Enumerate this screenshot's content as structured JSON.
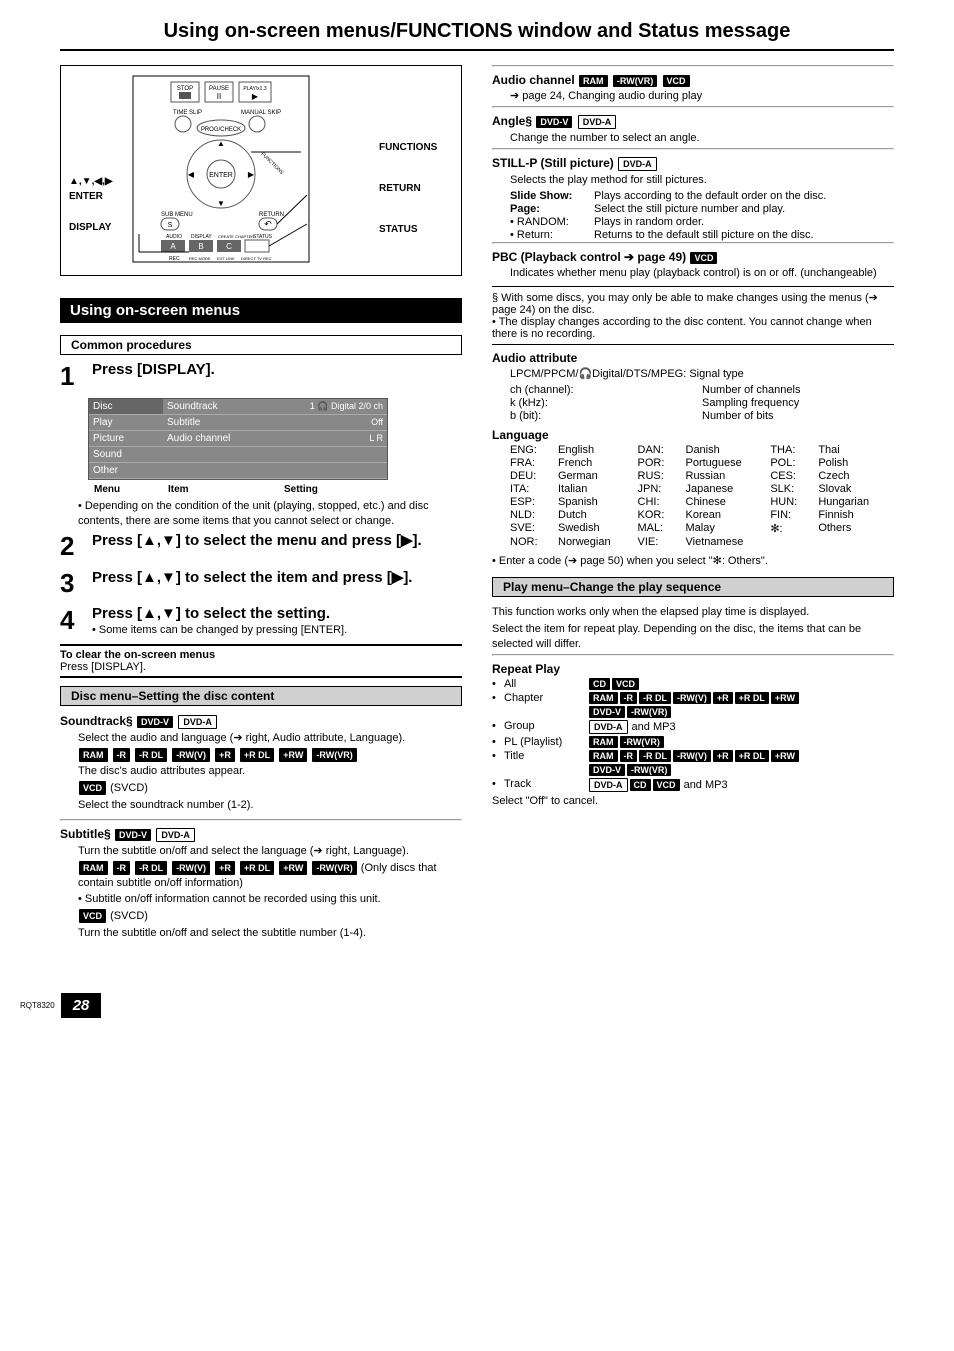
{
  "page_title": "Using on-screen menus/FUNCTIONS window and Status message",
  "doc_code": "RQT8320",
  "page_number": "28",
  "remote": {
    "left_labels": [
      "▲,▼,◀,▶ ENTER",
      "DISPLAY"
    ],
    "right_labels": [
      "FUNCTIONS",
      "RETURN",
      "STATUS"
    ]
  },
  "section_title": "Using on-screen menus",
  "common_procedures_label": "Common procedures",
  "steps": {
    "s1": {
      "num": "1",
      "title": "Press [DISPLAY].",
      "osd": {
        "rows": [
          {
            "l": "Disc",
            "m": "Soundtrack",
            "r": "1    🎧 Digital  2/0 ch"
          },
          {
            "l": "Play",
            "m": "Subtitle",
            "r": "Off"
          },
          {
            "l": "Picture",
            "m": "Audio channel",
            "r": "L R"
          },
          {
            "l": "Sound",
            "m": "",
            "r": ""
          },
          {
            "l": "Other",
            "m": "",
            "r": ""
          }
        ],
        "caption": [
          "Menu",
          "Item",
          "Setting"
        ]
      },
      "note": "• Depending on the condition of the unit (playing, stopped, etc.) and disc contents, there are some items that you cannot select or change."
    },
    "s2": {
      "num": "2",
      "title": "Press [▲,▼] to select the menu and press [▶]."
    },
    "s3": {
      "num": "3",
      "title": "Press [▲,▼] to select the item and press [▶]."
    },
    "s4": {
      "num": "4",
      "title": "Press [▲,▼] to select the setting.",
      "note": "• Some items can be changed by pressing [ENTER]."
    }
  },
  "clear": {
    "title": "To clear the on-screen menus",
    "body": "Press [DISPLAY]."
  },
  "disc_menu_bar": "Disc menu–Setting the disc content",
  "soundtrack": {
    "title": "Soundtrack",
    "line1": "Select the audio and language (➔ right, Audio attribute, Language).",
    "line2": "The disc's audio attributes appear.",
    "line3": "(SVCD)",
    "line4": "Select the soundtrack number (1-2)."
  },
  "subtitle": {
    "title": "Subtitle",
    "line1": "Turn the subtitle on/off and select the language (➔ right, Language).",
    "line2": "(Only discs that contain subtitle on/off information)",
    "line3": "• Subtitle on/off information cannot be recorded using this unit.",
    "line4": "(SVCD)",
    "line5": "Turn the subtitle on/off and select the subtitle number (1-4)."
  },
  "audio_channel": {
    "title": "Audio channel",
    "line": "➔ page 24, Changing audio during play"
  },
  "angle": {
    "title": "Angle",
    "line": "Change the number to select an angle."
  },
  "stillp": {
    "title": "STILL-P (Still picture)",
    "intro": "Selects the play method for still pictures.",
    "rows": [
      {
        "k": "Slide Show:",
        "v": "Plays according to the default order on the disc."
      },
      {
        "k": "Page:",
        "v": "Select the still picture number and play."
      },
      {
        "k": "• RANDOM:",
        "v": "Plays in random order."
      },
      {
        "k": "• Return:",
        "v": "Returns to the default still picture on the disc."
      }
    ]
  },
  "pbc": {
    "title": "PBC (Playback control ➔ page 49)",
    "line": "Indicates whether menu play (playback control) is on or off. (unchangeable)"
  },
  "footnote1": "§ With some discs, you may only be able to make changes using the menus (➔ page 24) on the disc.",
  "footnote2": "• The display changes according to the disc content. You cannot change when there is no recording.",
  "audio_attr": {
    "title": "Audio attribute",
    "line1": "LPCM/PPCM/🎧Digital/DTS/MPEG: Signal type",
    "rows": [
      {
        "k": "ch (channel):",
        "v": "Number of channels"
      },
      {
        "k": "k (kHz):",
        "v": "Sampling frequency"
      },
      {
        "k": "b (bit):",
        "v": "Number of bits"
      }
    ]
  },
  "language": {
    "title": "Language",
    "rows": [
      [
        "ENG:",
        "English",
        "DAN:",
        "Danish",
        "THA:",
        "Thai"
      ],
      [
        "FRA:",
        "French",
        "POR:",
        "Portuguese",
        "POL:",
        "Polish"
      ],
      [
        "DEU:",
        "German",
        "RUS:",
        "Russian",
        "CES:",
        "Czech"
      ],
      [
        "ITA:",
        "Italian",
        "JPN:",
        "Japanese",
        "SLK:",
        "Slovak"
      ],
      [
        "ESP:",
        "Spanish",
        "CHI:",
        "Chinese",
        "HUN:",
        "Hungarian"
      ],
      [
        "NLD:",
        "Dutch",
        "KOR:",
        "Korean",
        "FIN:",
        "Finnish"
      ],
      [
        "SVE:",
        "Swedish",
        "MAL:",
        "Malay",
        "✻:",
        "Others"
      ],
      [
        "NOR:",
        "Norwegian",
        "VIE:",
        "Vietnamese",
        "",
        ""
      ]
    ],
    "footnote": "• Enter a code (➔ page 50) when you select \"✻: Others\"."
  },
  "play_menu_bar": "Play menu–Change the play sequence",
  "play_menu_intro1": "This function works only when the elapsed play time is displayed.",
  "play_menu_intro2": "Select the item for repeat play. Depending on the disc, the items that can be selected will differ.",
  "repeat": {
    "title": "Repeat Play",
    "rows": [
      {
        "label": "All",
        "badges": [
          "CD",
          "VCD"
        ]
      },
      {
        "label": "Chapter",
        "badges": [
          "RAM",
          "-R",
          "-R DL",
          "-RW(V)",
          "+R",
          "+R DL",
          "+RW"
        ],
        "badges2": [
          "DVD-V",
          "-RW(VR)"
        ]
      },
      {
        "label": "Group",
        "badges_outline": [
          "DVD-A"
        ],
        "suffix": " and MP3"
      },
      {
        "label": "PL (Playlist)",
        "badges": [
          "RAM",
          "-RW(VR)"
        ]
      },
      {
        "label": "Title",
        "badges": [
          "RAM",
          "-R",
          "-R DL",
          "-RW(V)",
          "+R",
          "+R DL",
          "+RW"
        ],
        "badges2": [
          "DVD-V",
          "-RW(VR)"
        ]
      },
      {
        "label": "Track",
        "badges_outline": [
          "DVD-A"
        ],
        "badges": [
          "CD",
          "VCD"
        ],
        "suffix": " and MP3"
      }
    ],
    "cancel": "Select \"Off\" to cancel."
  },
  "badges": {
    "dvdv": "DVD-V",
    "dvda": "DVD-A",
    "ram": "RAM",
    "r": "-R",
    "rdl": "-R DL",
    "rwv": "-RW(V)",
    "pr": "+R",
    "prdl": "+R DL",
    "prw": "+RW",
    "rwvr": "-RW(VR)",
    "vcd": "VCD",
    "cd": "CD"
  }
}
